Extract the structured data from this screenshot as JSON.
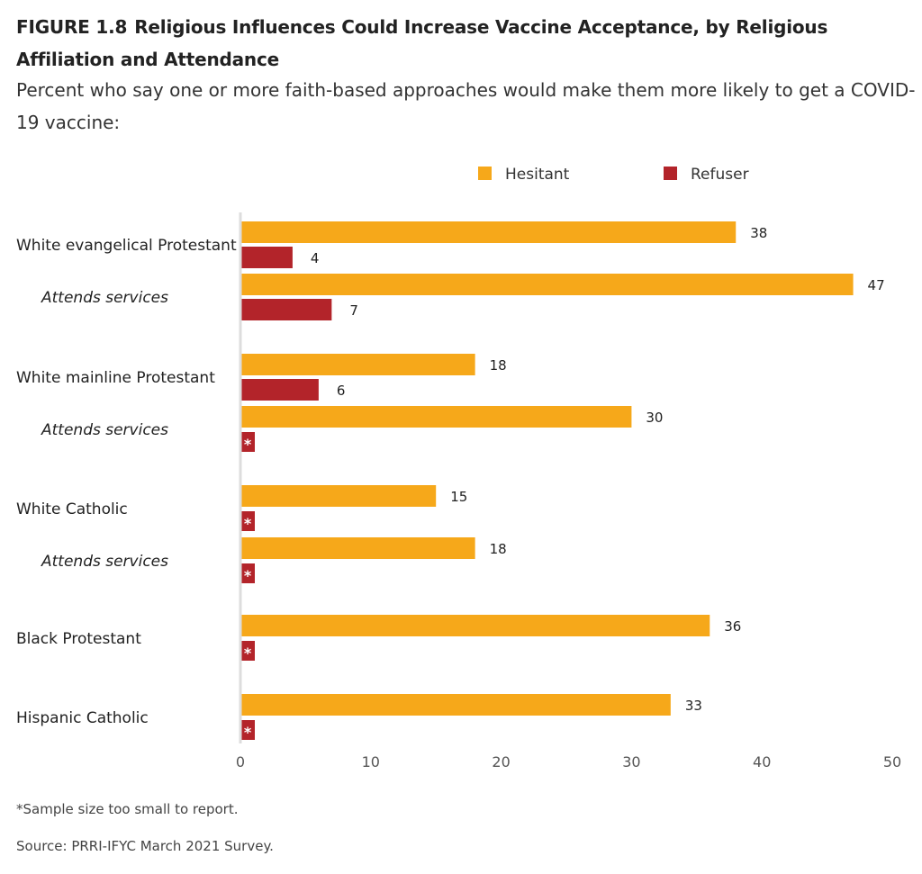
{
  "title_label": "FIGURE 1.8",
  "title_text": "Religious Influences Could Increase Vaccine Acceptance, by Religious Affiliation and Attendance",
  "subtitle": "Percent who say one or more faith-based approaches would make them more likely to get a COVID-19 vaccine:",
  "footnote": "*Sample size too small to report.",
  "source": "Source: PRRI-IFYC March 2021 Survey.",
  "chart_data": {
    "type": "bar",
    "orientation": "horizontal",
    "legend_position": "top",
    "grid": false,
    "xlim": [
      0,
      50
    ],
    "ticks": [
      0,
      10,
      20,
      30,
      40,
      50
    ],
    "suppressed_marker": "*",
    "categories": [
      {
        "label": "White evangelical Protestant",
        "italic": false
      },
      {
        "label": "Attends services",
        "italic": true
      },
      {
        "label": "White mainline Protestant",
        "italic": false
      },
      {
        "label": "Attends services",
        "italic": true
      },
      {
        "label": "White Catholic",
        "italic": false
      },
      {
        "label": "Attends services",
        "italic": true
      },
      {
        "label": "Black Protestant",
        "italic": false
      },
      {
        "label": "Hispanic Catholic",
        "italic": false
      }
    ],
    "series": [
      {
        "name": "Hesitant",
        "color": "#F6A81A",
        "values": [
          38,
          47,
          18,
          30,
          15,
          18,
          36,
          33
        ]
      },
      {
        "name": "Refuser",
        "color": "#B3242A",
        "values": [
          4,
          7,
          6,
          null,
          null,
          null,
          null,
          null
        ]
      }
    ]
  }
}
